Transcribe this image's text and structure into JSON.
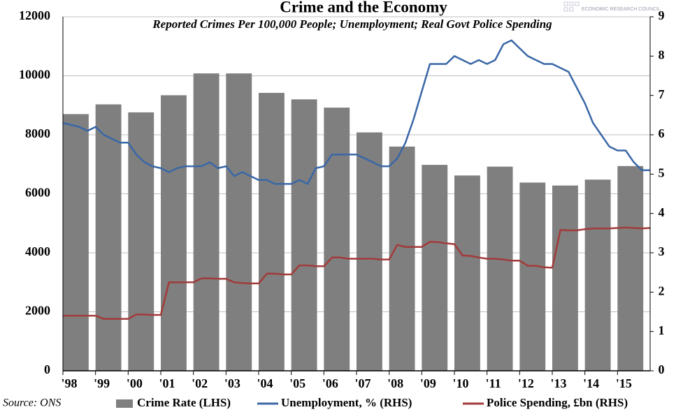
{
  "chart_data": {
    "type": "bar-line",
    "title": "Crime and the Economy",
    "subtitle": "Reported Crimes Per 100,000 People; Unemployment; Real Govt Police Spending",
    "source": "Source: ONS",
    "watermark": "ECONOMIC RESEARCH COUNCIL",
    "xlim": [
      1998,
      2016
    ],
    "xticks": [
      {
        "value": 1998,
        "label": "'98"
      },
      {
        "value": 1999,
        "label": "'99"
      },
      {
        "value": 2000,
        "label": "'00"
      },
      {
        "value": 2001,
        "label": "'01"
      },
      {
        "value": 2002,
        "label": "'02"
      },
      {
        "value": 2003,
        "label": "'03"
      },
      {
        "value": 2004,
        "label": "'04"
      },
      {
        "value": 2005,
        "label": "'05"
      },
      {
        "value": 2006,
        "label": "'06"
      },
      {
        "value": 2007,
        "label": "'07"
      },
      {
        "value": 2008,
        "label": "'08"
      },
      {
        "value": 2009,
        "label": "'09"
      },
      {
        "value": 2010,
        "label": "'10"
      },
      {
        "value": 2011,
        "label": "'11"
      },
      {
        "value": 2012,
        "label": "'12"
      },
      {
        "value": 2013,
        "label": "'13"
      },
      {
        "value": 2014,
        "label": "'14"
      },
      {
        "value": 2015,
        "label": "'15"
      }
    ],
    "ylim": [
      0,
      12000
    ],
    "yticks": [
      0,
      2000,
      4000,
      6000,
      8000,
      10000,
      12000
    ],
    "y2lim": [
      0,
      9
    ],
    "y2ticks": [
      0,
      1,
      2,
      3,
      4,
      5,
      6,
      7,
      8,
      9
    ],
    "grid": true,
    "series": [
      {
        "name": "Crime Rate (LHS)",
        "type": "bar",
        "color": "#7f7f7f",
        "x": [
          1998,
          1999,
          2000,
          2001,
          2002,
          2003,
          2004,
          2005,
          2006,
          2007,
          2008,
          2009,
          2010,
          2011,
          2012,
          2013,
          2014,
          2015
        ],
        "values": [
          8700,
          9030,
          8760,
          9340,
          10080,
          10080,
          9420,
          9200,
          8920,
          8080,
          7600,
          6980,
          6620,
          6920,
          6380,
          6280,
          6480,
          6940
        ]
      },
      {
        "name": "Unemployment, % (RHS)",
        "type": "line",
        "axis": "y2",
        "color": "#3a67a6",
        "x": [
          1998,
          1998.25,
          1998.5,
          1998.75,
          1999,
          1999.25,
          1999.5,
          1999.75,
          2000,
          2000.25,
          2000.5,
          2000.75,
          2001,
          2001.25,
          2001.5,
          2001.75,
          2002,
          2002.25,
          2002.5,
          2002.75,
          2003,
          2003.25,
          2003.5,
          2003.75,
          2004,
          2004.25,
          2004.5,
          2004.75,
          2005,
          2005.25,
          2005.5,
          2005.75,
          2006,
          2006.25,
          2006.5,
          2006.75,
          2007,
          2007.25,
          2007.5,
          2007.75,
          2008,
          2008.25,
          2008.5,
          2008.75,
          2009,
          2009.25,
          2009.5,
          2009.75,
          2010,
          2010.25,
          2010.5,
          2010.75,
          2011,
          2011.25,
          2011.5,
          2011.75,
          2012,
          2012.25,
          2012.5,
          2012.75,
          2013,
          2013.25,
          2013.5,
          2013.75,
          2014,
          2014.25,
          2014.5,
          2014.75,
          2015,
          2015.25,
          2015.5,
          2015.75,
          2016
        ],
        "values": [
          6.3,
          6.25,
          6.2,
          6.1,
          6.2,
          6.0,
          5.9,
          5.8,
          5.8,
          5.5,
          5.3,
          5.2,
          5.15,
          5.05,
          5.15,
          5.2,
          5.2,
          5.2,
          5.3,
          5.15,
          5.2,
          4.95,
          5.05,
          4.95,
          4.85,
          4.85,
          4.75,
          4.75,
          4.75,
          4.85,
          4.75,
          5.15,
          5.2,
          5.5,
          5.5,
          5.5,
          5.5,
          5.4,
          5.3,
          5.2,
          5.2,
          5.4,
          5.8,
          6.4,
          7.1,
          7.8,
          7.8,
          7.8,
          8.0,
          7.9,
          7.8,
          7.9,
          7.8,
          7.9,
          8.3,
          8.4,
          8.2,
          8.0,
          7.9,
          7.8,
          7.8,
          7.7,
          7.6,
          7.2,
          6.8,
          6.3,
          6.0,
          5.7,
          5.6,
          5.6,
          5.3,
          5.1,
          5.1
        ]
      },
      {
        "name": "Police Spending, £bn (RHS)",
        "type": "line",
        "axis": "y2",
        "color": "#a33a3a",
        "x": [
          1998,
          1998.25,
          1998.5,
          1998.75,
          1999,
          1999.25,
          1999.5,
          1999.75,
          2000,
          2000.25,
          2000.5,
          2000.75,
          2001,
          2001.25,
          2001.5,
          2001.75,
          2002,
          2002.25,
          2002.5,
          2002.75,
          2003,
          2003.25,
          2003.5,
          2003.75,
          2004,
          2004.25,
          2004.5,
          2004.75,
          2005,
          2005.25,
          2005.5,
          2005.75,
          2006,
          2006.25,
          2006.5,
          2006.75,
          2007,
          2007.25,
          2007.5,
          2007.75,
          2008,
          2008.25,
          2008.5,
          2008.75,
          2009,
          2009.25,
          2009.5,
          2009.75,
          2010,
          2010.25,
          2010.5,
          2010.75,
          2011,
          2011.25,
          2011.5,
          2011.75,
          2012,
          2012.25,
          2012.5,
          2012.75,
          2013,
          2013.25,
          2013.5,
          2013.75,
          2014,
          2014.25,
          2014.5,
          2014.75,
          2015,
          2015.25,
          2015.5,
          2015.75,
          2016
        ],
        "values": [
          1.4,
          1.4,
          1.4,
          1.4,
          1.4,
          1.32,
          1.32,
          1.32,
          1.32,
          1.43,
          1.43,
          1.42,
          1.42,
          2.25,
          2.25,
          2.25,
          2.25,
          2.35,
          2.35,
          2.34,
          2.34,
          2.25,
          2.23,
          2.22,
          2.22,
          2.47,
          2.47,
          2.45,
          2.45,
          2.68,
          2.68,
          2.66,
          2.66,
          2.88,
          2.88,
          2.85,
          2.85,
          2.85,
          2.85,
          2.83,
          2.83,
          3.2,
          3.15,
          3.15,
          3.15,
          3.28,
          3.27,
          3.24,
          3.22,
          2.93,
          2.92,
          2.88,
          2.85,
          2.85,
          2.83,
          2.8,
          2.8,
          2.67,
          2.67,
          2.63,
          2.62,
          3.58,
          3.57,
          3.57,
          3.6,
          3.62,
          3.62,
          3.62,
          3.63,
          3.64,
          3.63,
          3.62,
          3.63
        ]
      }
    ]
  }
}
